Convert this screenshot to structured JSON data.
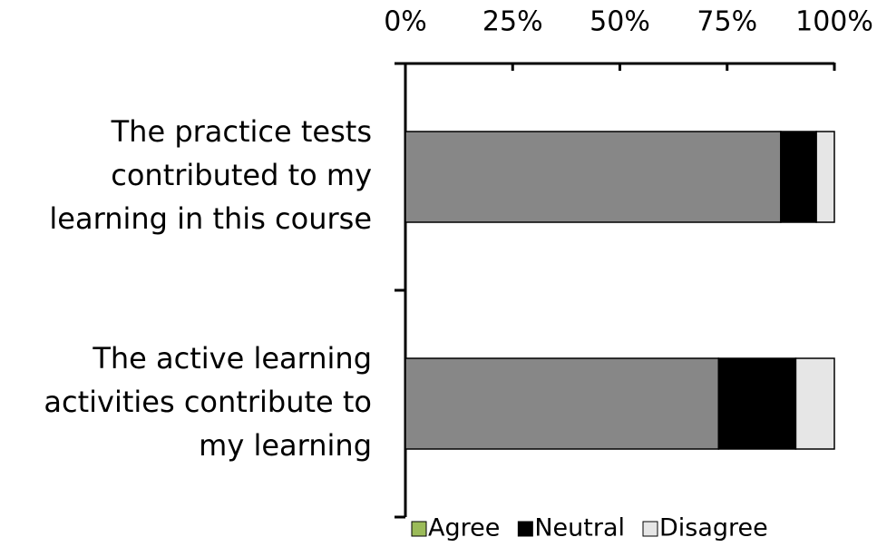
{
  "chart_data": {
    "type": "stacked_barh",
    "categories": [
      [
        "The practice tests",
        "contributed to my",
        "learning in this course"
      ],
      [
        "The active learning",
        "activities contribute to",
        "my learning"
      ]
    ],
    "series": [
      {
        "name": "Agree",
        "color": "#878787",
        "legend_color": "#9bbb59",
        "values": [
          87.5,
          73
        ]
      },
      {
        "name": "Neutral",
        "color": "#000000",
        "legend_color": "#000000",
        "values": [
          8.3,
          18
        ]
      },
      {
        "name": "Disagree",
        "color": "#e6e6e6",
        "legend_color": "#e6e6e6",
        "values": [
          4.2,
          9
        ]
      }
    ],
    "xlim": [
      0,
      100
    ],
    "xticks": [
      {
        "value": 0,
        "label": "0%"
      },
      {
        "value": 25,
        "label": "25%"
      },
      {
        "value": 50,
        "label": "50%"
      },
      {
        "value": 75,
        "label": "75%"
      },
      {
        "value": 100,
        "label": "100%"
      }
    ],
    "legend": "bottom"
  }
}
